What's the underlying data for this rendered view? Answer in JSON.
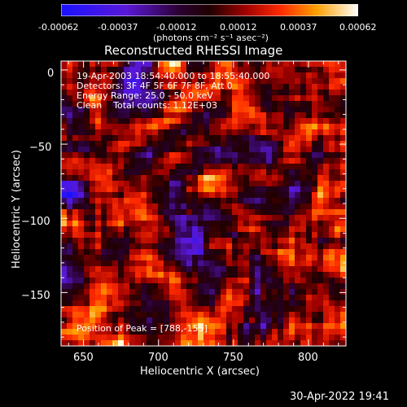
{
  "colorbar": {
    "tick_labels": [
      "-0.00062",
      "-0.00037",
      "-0.00012",
      "0.00012",
      "0.00037",
      "0.00062"
    ],
    "unit_label": "(photons cm⁻² s⁻¹ asec⁻²)",
    "colormap": "blue-purple-red-orange-yellow-white",
    "colors": [
      "#1a12ff",
      "#6e16c8",
      "#2a0010",
      "#8c0000",
      "#ff2a00",
      "#ffa000",
      "#ffffff"
    ]
  },
  "plot": {
    "title": "Reconstructed RHESSI Image",
    "xlabel": "Heliocentric X (arcsec)",
    "ylabel": "Heliocentric Y (arcsec)",
    "x_ticks": [
      "650",
      "700",
      "750",
      "800"
    ],
    "y_ticks": [
      "0",
      "−50",
      "−100",
      "−150"
    ],
    "xlim": [
      635,
      825
    ],
    "ylim": [
      -186,
      6
    ]
  },
  "annotations": {
    "time_range": "19-Apr-2003 18:54:40.000 to 18:55:40.000",
    "detectors": "Detectors: 3F 4F 5F 6F 7F 8F, Att 0",
    "energy": "Energy Range: 25.0 - 50.0 keV",
    "clean": "Clean    Total counts: 1.12E+03",
    "peak": "Position of Peak = [788,-155]"
  },
  "footer": {
    "timestamp": "30-Apr-2022 19:41"
  }
}
